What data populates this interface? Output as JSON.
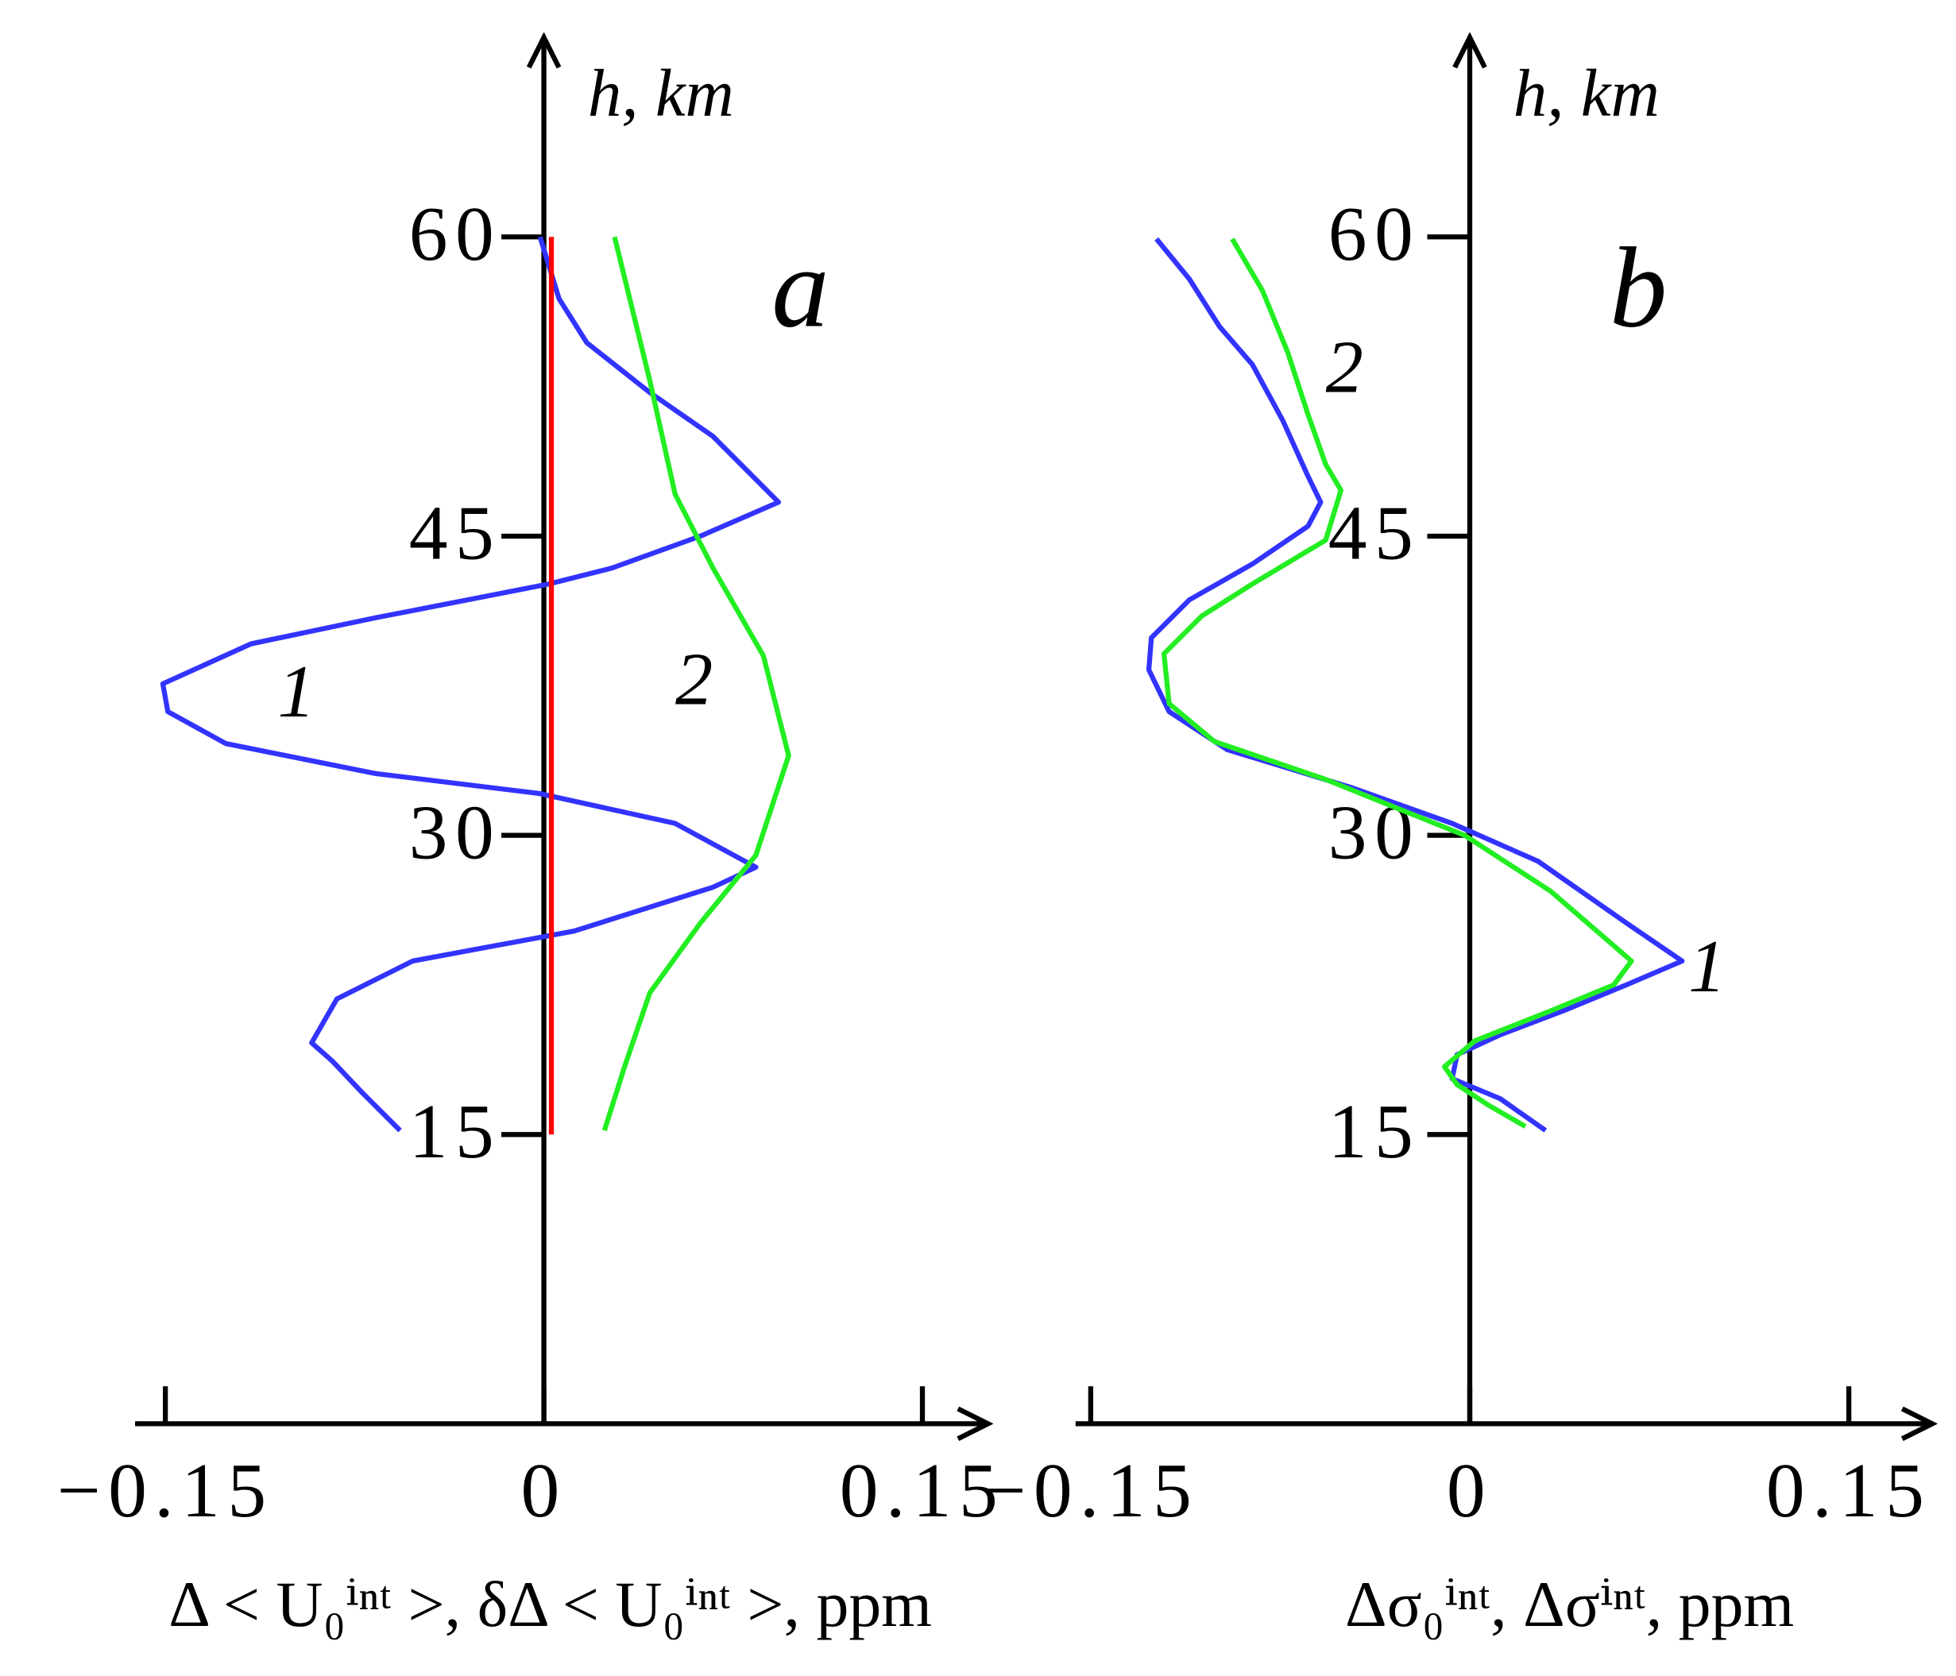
{
  "chart_data": [
    {
      "type": "line",
      "title": "a",
      "ylabel": "h, km",
      "xlabel": "Δ < U₀ⁱⁿᵗ >, δΔ < U₀ⁱⁿᵗ >, ppm",
      "xlim": [
        -0.162,
        0.176
      ],
      "ylim": [
        0,
        70
      ],
      "xticks": [
        {
          "value": -0.15,
          "label": "−0.15"
        },
        0,
        0.15
      ],
      "yticks": [
        15,
        30,
        45,
        60
      ],
      "grid": false,
      "series": [
        {
          "name": "1",
          "color": "#3333ff",
          "x": [
            -0.0015,
            0.006,
            0.017,
            0.042,
            0.067,
            0.093,
            0.062,
            0.027,
            0.002,
            -0.067,
            -0.116,
            -0.151,
            -0.149,
            -0.126,
            -0.067,
            -0.002,
            0.052,
            0.084,
            0.067,
            0.012,
            -0.052,
            -0.082,
            -0.092,
            -0.084,
            -0.072,
            -0.057
          ],
          "values": [
            60,
            56.9,
            54.7,
            52.2,
            50.0,
            46.7,
            45.0,
            43.4,
            42.6,
            40.9,
            39.6,
            37.6,
            36.2,
            34.6,
            33.1,
            32.1,
            30.6,
            28.4,
            27.4,
            25.2,
            23.7,
            21.8,
            19.6,
            18.7,
            17.1,
            15.2
          ]
        },
        {
          "name": "2",
          "color": "#22ee22",
          "x": [
            0.028,
            0.042,
            0.052,
            0.067,
            0.087,
            0.097,
            0.084,
            0.062,
            0.042,
            0.032,
            0.024
          ],
          "values": [
            60,
            52.8,
            47.1,
            43.4,
            39.0,
            34.0,
            29.0,
            25.6,
            22.1,
            18.4,
            15.2
          ]
        },
        {
          "color": "#ff0000",
          "x": [
            0.003,
            0.003
          ],
          "values": [
            15,
            60
          ]
        }
      ]
    },
    {
      "type": "line",
      "title": "b",
      "ylabel": "h, km",
      "xlabel": "Δσ₀ⁱⁿᵗ, Δσⁱⁿᵗ, ppm",
      "xlim": [
        -0.156,
        0.183
      ],
      "ylim": [
        0,
        70
      ],
      "xticks": [
        {
          "value": -0.15,
          "label": "−0.15"
        },
        0,
        0.15
      ],
      "yticks": [
        15,
        30,
        45,
        60
      ],
      "grid": false,
      "series": [
        {
          "name": "1",
          "color": "#3333ff",
          "x": [
            -0.124,
            -0.111,
            -0.099,
            -0.086,
            -0.074,
            -0.064,
            -0.059,
            -0.064,
            -0.086,
            -0.111,
            -0.126,
            -0.127,
            -0.119,
            -0.096,
            -0.047,
            -0.007,
            0.027,
            0.062,
            0.084,
            0.062,
            0.037,
            0.012,
            -0.005,
            -0.007,
            0.012,
            0.03
          ],
          "values": [
            59.9,
            57.9,
            55.5,
            53.6,
            50.8,
            48.0,
            46.7,
            45.5,
            43.6,
            41.8,
            39.9,
            38.3,
            36.2,
            34.3,
            32.4,
            30.6,
            28.7,
            25.6,
            23.7,
            22.5,
            21.2,
            20.0,
            19.0,
            17.8,
            16.8,
            15.2
          ]
        },
        {
          "name": "2",
          "color": "#22ee22",
          "x": [
            -0.094,
            -0.082,
            -0.072,
            -0.064,
            -0.057,
            -0.051,
            -0.057,
            -0.086,
            -0.106,
            -0.121,
            -0.119,
            -0.101,
            -0.057,
            -0.002,
            0.032,
            0.064,
            0.057,
            0.032,
            0.002,
            -0.01,
            -0.005,
            0.007,
            0.022
          ],
          "values": [
            59.9,
            57.3,
            54.2,
            51.1,
            48.6,
            47.3,
            44.8,
            42.6,
            41.0,
            39.1,
            36.6,
            34.7,
            32.8,
            30.0,
            27.2,
            23.7,
            22.5,
            21.2,
            19.7,
            18.4,
            17.5,
            16.5,
            15.4
          ]
        }
      ]
    }
  ]
}
